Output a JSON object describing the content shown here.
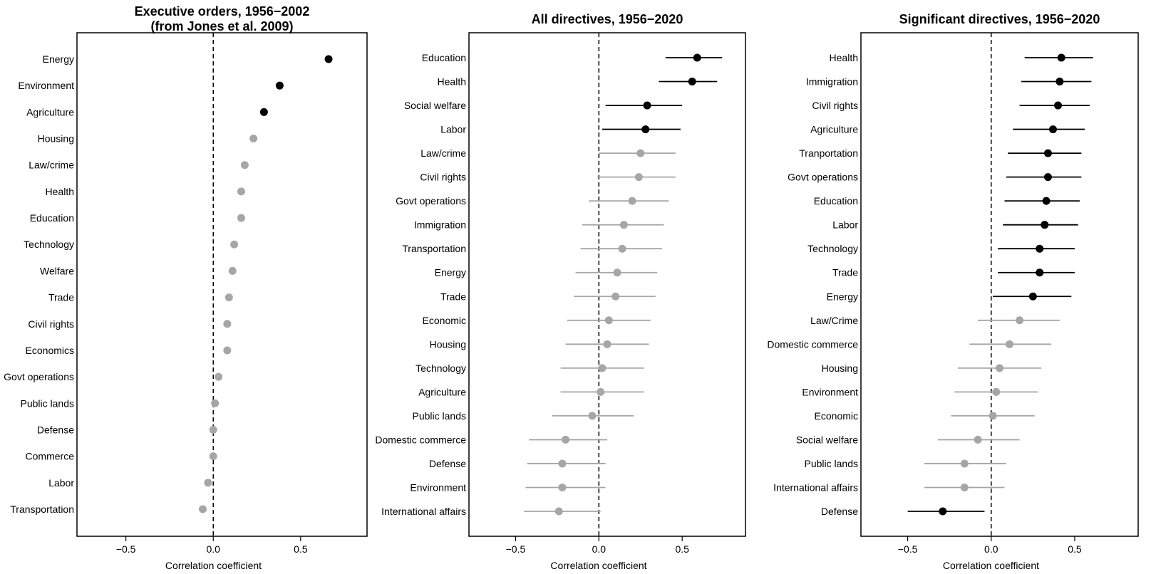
{
  "colors": {
    "significant": "#000000",
    "nonsignificant": "#a6a6a6"
  },
  "chart_data": [
    {
      "type": "scatter",
      "title_lines": [
        "Executive orders, 1956−2002",
        "(from Jones et al. 2009)"
      ],
      "xlabel": "Correlation coefficient",
      "xlim": [
        -0.78,
        0.88
      ],
      "xticks": [
        -0.5,
        0.0,
        0.5
      ],
      "xtick_labels": [
        "−0.5",
        "0.0",
        "0.5"
      ],
      "reference_line": 0.0,
      "error_bars": false,
      "points": [
        {
          "category": "Energy",
          "value": 0.66,
          "significant": true
        },
        {
          "category": "Environment",
          "value": 0.38,
          "significant": true
        },
        {
          "category": "Agriculture",
          "value": 0.29,
          "significant": true
        },
        {
          "category": "Housing",
          "value": 0.23,
          "significant": false
        },
        {
          "category": "Law/crime",
          "value": 0.18,
          "significant": false
        },
        {
          "category": "Health",
          "value": 0.16,
          "significant": false
        },
        {
          "category": "Education",
          "value": 0.16,
          "significant": false
        },
        {
          "category": "Technology",
          "value": 0.12,
          "significant": false
        },
        {
          "category": "Welfare",
          "value": 0.11,
          "significant": false
        },
        {
          "category": "Trade",
          "value": 0.09,
          "significant": false
        },
        {
          "category": "Civil rights",
          "value": 0.08,
          "significant": false
        },
        {
          "category": "Economics",
          "value": 0.08,
          "significant": false
        },
        {
          "category": "Govt operations",
          "value": 0.03,
          "significant": false
        },
        {
          "category": "Public lands",
          "value": 0.01,
          "significant": false
        },
        {
          "category": "Defense",
          "value": 0.0,
          "significant": false
        },
        {
          "category": "Commerce",
          "value": 0.0,
          "significant": false
        },
        {
          "category": "Labor",
          "value": -0.03,
          "significant": false
        },
        {
          "category": "Transportation",
          "value": -0.06,
          "significant": false
        }
      ]
    },
    {
      "type": "scatter",
      "title_lines": [
        "All directives, 1956−2020"
      ],
      "xlabel": "Correlation coefficient",
      "xlim": [
        -0.78,
        0.88
      ],
      "xticks": [
        -0.5,
        0.0,
        0.5
      ],
      "xtick_labels": [
        "−0.5",
        "0.0",
        "0.5"
      ],
      "reference_line": 0.0,
      "error_bars": true,
      "points": [
        {
          "category": "Education",
          "value": 0.59,
          "low": 0.4,
          "high": 0.74,
          "significant": true
        },
        {
          "category": "Health",
          "value": 0.56,
          "low": 0.36,
          "high": 0.71,
          "significant": true
        },
        {
          "category": "Social welfare",
          "value": 0.29,
          "low": 0.04,
          "high": 0.5,
          "significant": true
        },
        {
          "category": "Labor",
          "value": 0.28,
          "low": 0.02,
          "high": 0.49,
          "significant": true
        },
        {
          "category": "Law/crime",
          "value": 0.25,
          "low": 0.0,
          "high": 0.46,
          "significant": false
        },
        {
          "category": "Civil rights",
          "value": 0.24,
          "low": -0.01,
          "high": 0.46,
          "significant": false
        },
        {
          "category": "Govt operations",
          "value": 0.2,
          "low": -0.06,
          "high": 0.42,
          "significant": false
        },
        {
          "category": "Immigration",
          "value": 0.15,
          "low": -0.1,
          "high": 0.39,
          "significant": false
        },
        {
          "category": "Transportation",
          "value": 0.14,
          "low": -0.11,
          "high": 0.38,
          "significant": false
        },
        {
          "category": "Energy",
          "value": 0.11,
          "low": -0.14,
          "high": 0.35,
          "significant": false
        },
        {
          "category": "Trade",
          "value": 0.1,
          "low": -0.15,
          "high": 0.34,
          "significant": false
        },
        {
          "category": "Economic",
          "value": 0.06,
          "low": -0.19,
          "high": 0.31,
          "significant": false
        },
        {
          "category": "Housing",
          "value": 0.05,
          "low": -0.2,
          "high": 0.3,
          "significant": false
        },
        {
          "category": "Technology",
          "value": 0.02,
          "low": -0.23,
          "high": 0.27,
          "significant": false
        },
        {
          "category": "Agriculture",
          "value": 0.01,
          "low": -0.23,
          "high": 0.27,
          "significant": false
        },
        {
          "category": "Public lands",
          "value": -0.04,
          "low": -0.28,
          "high": 0.21,
          "significant": false
        },
        {
          "category": "Domestic commerce",
          "value": -0.2,
          "low": -0.42,
          "high": 0.05,
          "significant": false
        },
        {
          "category": "Defense",
          "value": -0.22,
          "low": -0.43,
          "high": 0.04,
          "significant": false
        },
        {
          "category": "Environment",
          "value": -0.22,
          "low": -0.44,
          "high": 0.04,
          "significant": false
        },
        {
          "category": "International affairs",
          "value": -0.24,
          "low": -0.45,
          "high": 0.01,
          "significant": false
        }
      ]
    },
    {
      "type": "scatter",
      "title_lines": [
        "Significant directives, 1956−2020"
      ],
      "xlabel": "Correlation coefficient",
      "xlim": [
        -0.78,
        0.88
      ],
      "xticks": [
        -0.5,
        0.0,
        0.5
      ],
      "xtick_labels": [
        "−0.5",
        "0.0",
        "0.5"
      ],
      "reference_line": 0.0,
      "error_bars": true,
      "points": [
        {
          "category": "Health",
          "value": 0.42,
          "low": 0.2,
          "high": 0.61,
          "significant": true
        },
        {
          "category": "Immigration",
          "value": 0.41,
          "low": 0.18,
          "high": 0.6,
          "significant": true
        },
        {
          "category": "Civil rights",
          "value": 0.4,
          "low": 0.17,
          "high": 0.59,
          "significant": true
        },
        {
          "category": "Agriculture",
          "value": 0.37,
          "low": 0.13,
          "high": 0.56,
          "significant": true
        },
        {
          "category": "Tranportation",
          "value": 0.34,
          "low": 0.1,
          "high": 0.54,
          "significant": true
        },
        {
          "category": "Govt operations",
          "value": 0.34,
          "low": 0.09,
          "high": 0.54,
          "significant": true
        },
        {
          "category": "Education",
          "value": 0.33,
          "low": 0.08,
          "high": 0.53,
          "significant": true
        },
        {
          "category": "Labor",
          "value": 0.32,
          "low": 0.07,
          "high": 0.52,
          "significant": true
        },
        {
          "category": "Technology",
          "value": 0.29,
          "low": 0.04,
          "high": 0.5,
          "significant": true
        },
        {
          "category": "Trade",
          "value": 0.29,
          "low": 0.04,
          "high": 0.5,
          "significant": true
        },
        {
          "category": "Energy",
          "value": 0.25,
          "low": 0.01,
          "high": 0.48,
          "significant": true
        },
        {
          "category": "Law/Crime",
          "value": 0.17,
          "low": -0.08,
          "high": 0.41,
          "significant": false
        },
        {
          "category": "Domestic commerce",
          "value": 0.11,
          "low": -0.13,
          "high": 0.36,
          "significant": false
        },
        {
          "category": "Housing",
          "value": 0.05,
          "low": -0.2,
          "high": 0.3,
          "significant": false
        },
        {
          "category": "Environment",
          "value": 0.03,
          "low": -0.22,
          "high": 0.28,
          "significant": false
        },
        {
          "category": "Economic",
          "value": 0.01,
          "low": -0.24,
          "high": 0.26,
          "significant": false
        },
        {
          "category": "Social welfare",
          "value": -0.08,
          "low": -0.32,
          "high": 0.17,
          "significant": false
        },
        {
          "category": "Public lands",
          "value": -0.16,
          "low": -0.4,
          "high": 0.09,
          "significant": false
        },
        {
          "category": "International affairs",
          "value": -0.16,
          "low": -0.4,
          "high": 0.08,
          "significant": false
        },
        {
          "category": "Defense",
          "value": -0.29,
          "low": -0.5,
          "high": -0.04,
          "significant": true
        }
      ]
    }
  ]
}
